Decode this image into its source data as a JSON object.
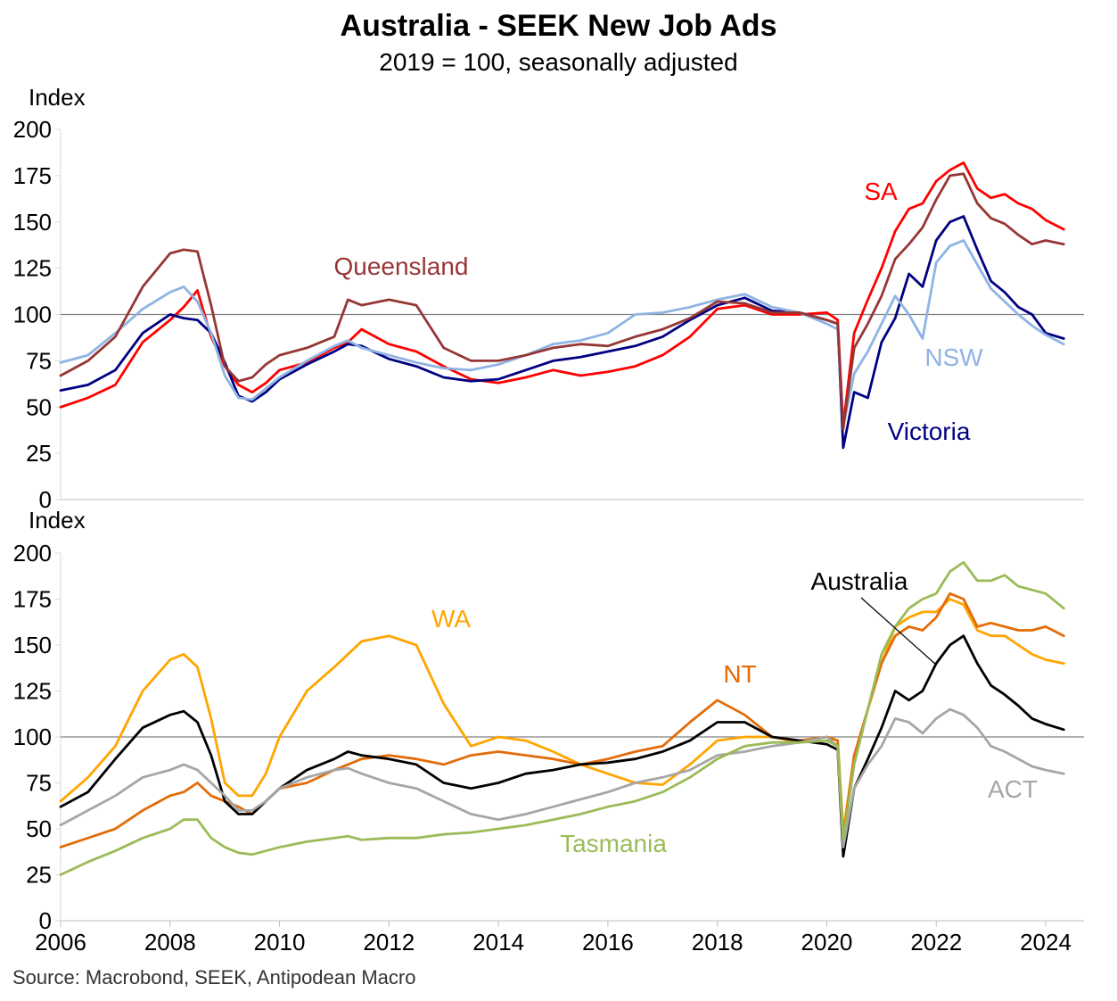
{
  "title": "Australia - SEEK New Job Ads",
  "subtitle": "2019 = 100, seasonally adjusted",
  "source": "Source: Macrobond, SEEK, Antipodean Macro",
  "chart_data": [
    {
      "type": "line",
      "ylabel": "Index",
      "ylim": [
        0,
        200
      ],
      "yticks": [
        0,
        25,
        50,
        75,
        100,
        125,
        150,
        175,
        200
      ],
      "xlim": [
        2006,
        2024.7
      ],
      "reference_line": 100,
      "grid": false,
      "x": [
        2006,
        2006.5,
        2007,
        2007.5,
        2008,
        2008.25,
        2008.5,
        2008.75,
        2009,
        2009.25,
        2009.5,
        2009.75,
        2010,
        2010.5,
        2011,
        2011.25,
        2011.5,
        2012,
        2012.5,
        2013,
        2013.5,
        2014,
        2014.5,
        2015,
        2015.5,
        2016,
        2016.5,
        2017,
        2017.5,
        2018,
        2018.5,
        2019,
        2019.5,
        2020,
        2020.2,
        2020.3,
        2020.5,
        2020.75,
        2021,
        2021.25,
        2021.5,
        2021.75,
        2022,
        2022.25,
        2022.5,
        2022.75,
        2023,
        2023.25,
        2023.5,
        2023.75,
        2024,
        2024.33
      ],
      "series": [
        {
          "name": "SA",
          "color": "#ff0000",
          "values": [
            50,
            55,
            62,
            85,
            97,
            104,
            113,
            88,
            72,
            62,
            58,
            63,
            70,
            74,
            82,
            85,
            92,
            84,
            80,
            72,
            65,
            63,
            66,
            70,
            67,
            69,
            72,
            78,
            88,
            103,
            105,
            100,
            100,
            101,
            97,
            40,
            90,
            108,
            125,
            145,
            157,
            160,
            172,
            178,
            182,
            168,
            163,
            165,
            160,
            157,
            151,
            146
          ]
        },
        {
          "name": "Victoria",
          "color": "#000080",
          "values": [
            59,
            62,
            70,
            90,
            100,
            98,
            97,
            90,
            74,
            56,
            53,
            58,
            65,
            73,
            80,
            84,
            83,
            76,
            72,
            66,
            64,
            65,
            70,
            75,
            77,
            80,
            83,
            88,
            97,
            105,
            109,
            102,
            101,
            97,
            95,
            28,
            58,
            55,
            85,
            98,
            122,
            115,
            140,
            150,
            153,
            135,
            118,
            112,
            104,
            100,
            90,
            87
          ]
        },
        {
          "name": "NSW",
          "color": "#8fb4e3",
          "values": [
            74,
            78,
            90,
            103,
            112,
            115,
            107,
            90,
            67,
            55,
            54,
            60,
            66,
            75,
            83,
            86,
            82,
            78,
            74,
            71,
            70,
            73,
            78,
            84,
            86,
            90,
            100,
            101,
            104,
            108,
            111,
            104,
            101,
            95,
            92,
            40,
            68,
            80,
            95,
            110,
            100,
            87,
            128,
            137,
            140,
            127,
            114,
            107,
            100,
            94,
            89,
            84
          ]
        },
        {
          "name": "Queensland",
          "color": "#953735",
          "values": [
            67,
            75,
            88,
            115,
            133,
            135,
            134,
            105,
            72,
            64,
            66,
            73,
            78,
            82,
            88,
            108,
            105,
            108,
            105,
            82,
            75,
            75,
            78,
            82,
            84,
            83,
            88,
            92,
            98,
            107,
            106,
            101,
            101,
            97,
            95,
            38,
            82,
            95,
            110,
            130,
            138,
            147,
            162,
            175,
            176,
            160,
            152,
            149,
            143,
            138,
            140,
            138
          ]
        }
      ],
      "labels": [
        "SA",
        "Victoria",
        "NSW",
        "Queensland"
      ]
    },
    {
      "type": "line",
      "ylabel": "Index",
      "ylim": [
        0,
        200
      ],
      "yticks": [
        0,
        25,
        50,
        75,
        100,
        125,
        150,
        175,
        200
      ],
      "xlim": [
        2006,
        2024.7
      ],
      "xticks": [
        "2006",
        "2008",
        "2010",
        "2012",
        "2014",
        "2016",
        "2018",
        "2020",
        "2022",
        "2024"
      ],
      "reference_line": 100,
      "grid": false,
      "x": [
        2006,
        2006.5,
        2007,
        2007.5,
        2008,
        2008.25,
        2008.5,
        2008.75,
        2009,
        2009.25,
        2009.5,
        2009.75,
        2010,
        2010.5,
        2011,
        2011.25,
        2011.5,
        2012,
        2012.5,
        2013,
        2013.5,
        2014,
        2014.5,
        2015,
        2015.5,
        2016,
        2016.5,
        2017,
        2017.5,
        2018,
        2018.5,
        2019,
        2019.5,
        2020,
        2020.2,
        2020.3,
        2020.5,
        2020.75,
        2021,
        2021.25,
        2021.5,
        2021.75,
        2022,
        2022.25,
        2022.5,
        2022.75,
        2023,
        2023.25,
        2023.5,
        2023.75,
        2024,
        2024.33
      ],
      "series": [
        {
          "name": "WA",
          "color": "#ffa500",
          "values": [
            65,
            78,
            95,
            125,
            142,
            145,
            138,
            110,
            75,
            68,
            68,
            80,
            100,
            125,
            138,
            145,
            152,
            155,
            150,
            118,
            95,
            100,
            98,
            92,
            85,
            80,
            75,
            74,
            85,
            98,
            100,
            100,
            97,
            100,
            98,
            48,
            90,
            115,
            140,
            160,
            165,
            168,
            168,
            175,
            172,
            158,
            155,
            155,
            150,
            145,
            142,
            140
          ]
        },
        {
          "name": "NT",
          "color": "#e36c09",
          "values": [
            40,
            45,
            50,
            60,
            68,
            70,
            75,
            68,
            65,
            62,
            58,
            65,
            72,
            75,
            82,
            85,
            88,
            90,
            88,
            85,
            90,
            92,
            90,
            88,
            85,
            88,
            92,
            95,
            108,
            120,
            112,
            100,
            98,
            100,
            98,
            45,
            90,
            115,
            140,
            155,
            160,
            158,
            165,
            178,
            175,
            160,
            162,
            160,
            158,
            158,
            160,
            155
          ]
        },
        {
          "name": "Australia",
          "color": "#000000",
          "values": [
            62,
            70,
            88,
            105,
            112,
            114,
            108,
            90,
            65,
            58,
            58,
            65,
            72,
            82,
            88,
            92,
            90,
            88,
            85,
            75,
            72,
            75,
            80,
            82,
            85,
            86,
            88,
            92,
            98,
            108,
            108,
            100,
            98,
            96,
            93,
            35,
            72,
            88,
            105,
            125,
            120,
            125,
            140,
            150,
            155,
            140,
            128,
            123,
            117,
            110,
            107,
            104
          ]
        },
        {
          "name": "ACT",
          "color": "#a6a6a6",
          "values": [
            52,
            60,
            68,
            78,
            82,
            85,
            82,
            75,
            68,
            60,
            60,
            65,
            72,
            78,
            82,
            83,
            80,
            75,
            72,
            65,
            58,
            55,
            58,
            62,
            66,
            70,
            75,
            78,
            82,
            90,
            92,
            95,
            97,
            100,
            95,
            40,
            72,
            85,
            95,
            110,
            108,
            102,
            110,
            115,
            112,
            105,
            95,
            92,
            88,
            84,
            82,
            80
          ]
        },
        {
          "name": "Tasmania",
          "color": "#9bbb59",
          "values": [
            25,
            32,
            38,
            45,
            50,
            55,
            55,
            45,
            40,
            37,
            36,
            38,
            40,
            43,
            45,
            46,
            44,
            45,
            45,
            47,
            48,
            50,
            52,
            55,
            58,
            62,
            65,
            70,
            78,
            88,
            95,
            97,
            97,
            98,
            95,
            44,
            85,
            115,
            145,
            160,
            170,
            175,
            178,
            190,
            195,
            185,
            185,
            188,
            182,
            180,
            178,
            170
          ]
        }
      ],
      "labels": [
        "WA",
        "NT",
        "Australia",
        "ACT",
        "Tasmania"
      ]
    }
  ]
}
